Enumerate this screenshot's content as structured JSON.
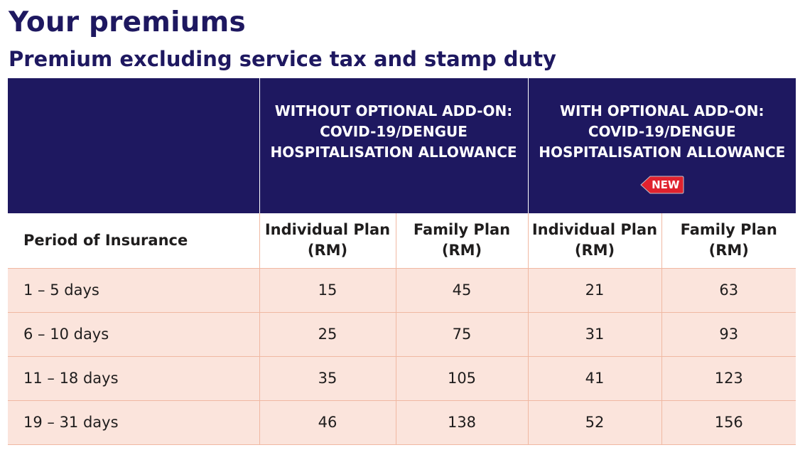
{
  "page": {
    "title": "Your premiums",
    "subtitle": "Premium excluding service tax and stamp duty"
  },
  "colors": {
    "header_bg": "#1e1860",
    "title_text": "#1e1860",
    "row_bg": "#fbe4dc",
    "grid_line": "#f0b8a2",
    "badge_red": "#e0222e"
  },
  "table": {
    "group_headers": [
      {
        "line1": "WITHOUT OPTIONAL ADD-ON:",
        "line2": "COVID-19/DENGUE",
        "line3": "HOSPITALISATION ALLOWANCE"
      },
      {
        "line1": "WITH OPTIONAL ADD-ON:",
        "line2": "COVID-19/DENGUE",
        "line3": "HOSPITALISATION ALLOWANCE",
        "badge": "NEW",
        "badge_icon": "tag-icon"
      }
    ],
    "column_headers": {
      "period": "Period of Insurance",
      "individual_line1": "Individual Plan",
      "family_line1": "Family Plan",
      "unit": "(RM)"
    },
    "rows": [
      {
        "period": "1 – 5 days",
        "without_individual": "15",
        "without_family": "45",
        "with_individual": "21",
        "with_family": "63"
      },
      {
        "period": "6 – 10 days",
        "without_individual": "25",
        "without_family": "75",
        "with_individual": "31",
        "with_family": "93"
      },
      {
        "period": "11 – 18 days",
        "without_individual": "35",
        "without_family": "105",
        "with_individual": "41",
        "with_family": "123"
      },
      {
        "period": "19 – 31 days",
        "without_individual": "46",
        "without_family": "138",
        "with_individual": "52",
        "with_family": "156"
      }
    ]
  }
}
